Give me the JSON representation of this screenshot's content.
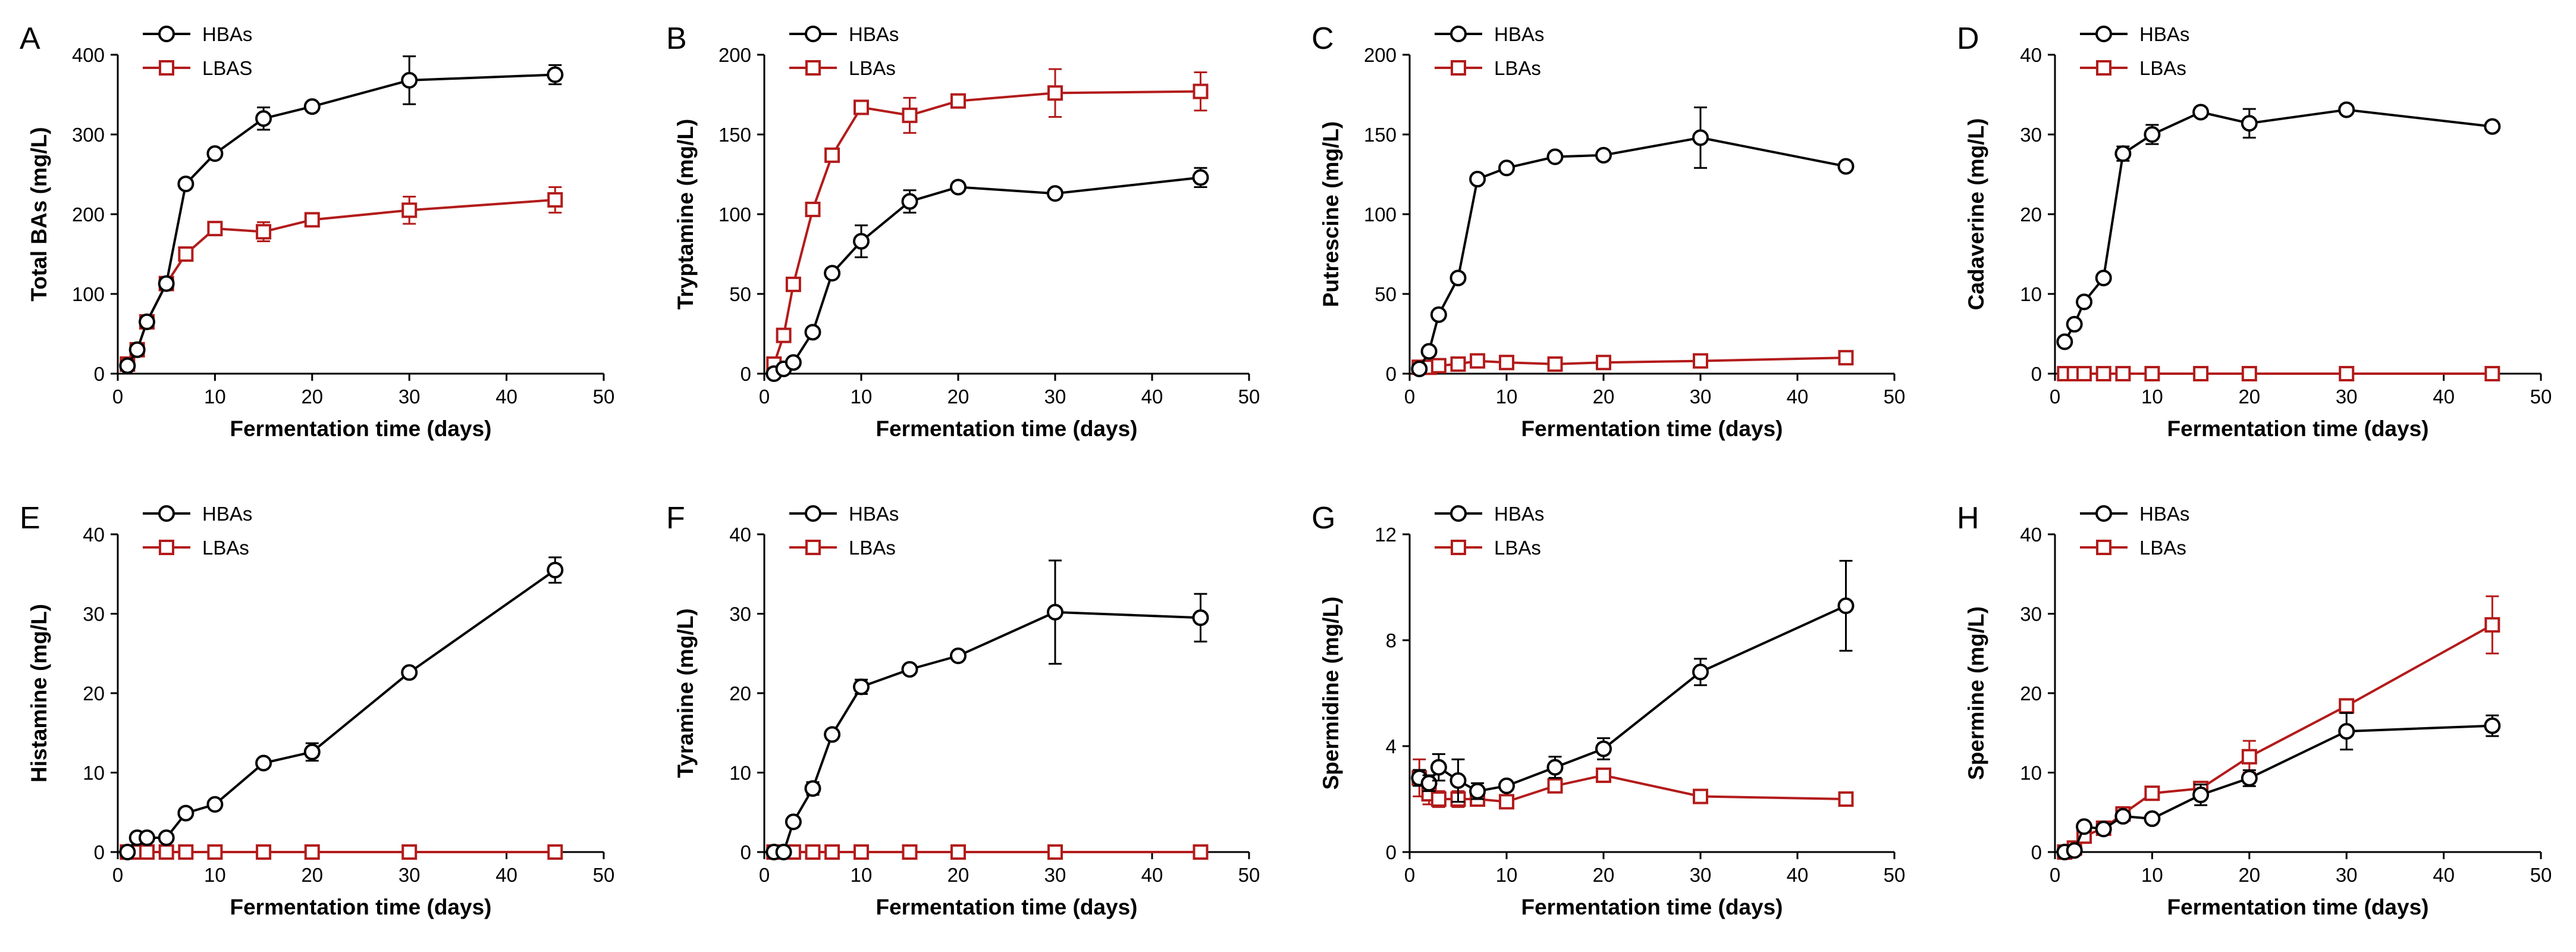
{
  "figure": {
    "colors": {
      "HBAs": "#000000",
      "LBAs": "#b31b1b"
    },
    "xlabel": "Fermentation time (days)",
    "xticks": [
      0,
      10,
      20,
      30,
      40,
      50
    ],
    "x": [
      1,
      2,
      3,
      5,
      7,
      10,
      15,
      20,
      30,
      45
    ]
  },
  "chart_data": [
    {
      "type": "line",
      "panel": "A",
      "ylabel": "Total BAs (mg/L)",
      "ylim": [
        0,
        400
      ],
      "yticks": [
        0,
        100,
        200,
        300,
        400
      ],
      "legend": [
        "HBAs",
        "LBAS"
      ],
      "legend_position": "top-left",
      "series": [
        {
          "name": "HBAs",
          "values": [
            10,
            30,
            65,
            113,
            238,
            276,
            320,
            335,
            368,
            375
          ],
          "errors": [
            4,
            5,
            6,
            7,
            0,
            0,
            14,
            0,
            30,
            12
          ]
        },
        {
          "name": "LBAS",
          "values": [
            12,
            30,
            65,
            113,
            150,
            182,
            178,
            193,
            205,
            218
          ],
          "errors": [
            3,
            5,
            6,
            7,
            0,
            0,
            12,
            0,
            17,
            16
          ]
        }
      ]
    },
    {
      "type": "line",
      "panel": "B",
      "ylabel": "Tryptamine (mg/L)",
      "ylim": [
        0,
        200
      ],
      "yticks": [
        0,
        50,
        100,
        150,
        200
      ],
      "legend": [
        "HBAs",
        "LBAs"
      ],
      "legend_position": "top-left",
      "series": [
        {
          "name": "HBAs",
          "values": [
            0,
            3,
            7,
            26,
            63,
            83,
            108,
            117,
            113,
            123
          ],
          "errors": [
            0,
            0,
            0,
            0,
            0,
            10,
            7,
            0,
            0,
            6
          ]
        },
        {
          "name": "LBAs",
          "values": [
            6,
            24,
            56,
            103,
            137,
            167,
            162,
            171,
            176,
            177
          ],
          "errors": [
            0,
            0,
            0,
            0,
            0,
            0,
            11,
            0,
            15,
            12
          ]
        }
      ]
    },
    {
      "type": "line",
      "panel": "C",
      "ylabel": "Putrescine (mg/L)",
      "ylim": [
        0,
        200
      ],
      "yticks": [
        0,
        50,
        100,
        150,
        200
      ],
      "legend": [
        "HBAs",
        "LBAs"
      ],
      "legend_position": "top-left",
      "series": [
        {
          "name": "HBAs",
          "values": [
            3,
            14,
            37,
            60,
            122,
            129,
            136,
            137,
            148,
            130
          ],
          "errors": [
            0,
            0,
            0,
            0,
            0,
            0,
            0,
            0,
            19,
            0
          ]
        },
        {
          "name": "LBAs",
          "values": [
            4,
            4,
            5,
            6,
            8,
            7,
            6,
            7,
            8,
            10
          ],
          "errors": [
            0,
            0,
            0,
            0,
            0,
            0,
            0,
            0,
            0,
            0
          ]
        }
      ]
    },
    {
      "type": "line",
      "panel": "D",
      "ylabel": "Cadaverine (mg/L)",
      "ylim": [
        0,
        40
      ],
      "yticks": [
        0,
        10,
        20,
        30,
        40
      ],
      "legend": [
        "HBAs",
        "LBAs"
      ],
      "legend_position": "top-left",
      "series": [
        {
          "name": "HBAs",
          "values": [
            4,
            6.2,
            9,
            12,
            27.6,
            30,
            32.8,
            31.4,
            33.1,
            31
          ],
          "errors": [
            0,
            0,
            0,
            0,
            0.9,
            1.2,
            0.6,
            1.8,
            0,
            0
          ]
        },
        {
          "name": "LBAs",
          "values": [
            0,
            0,
            0,
            0,
            0,
            0,
            0,
            0,
            0,
            0
          ],
          "errors": [
            0,
            0,
            0,
            0,
            0,
            0,
            0,
            0,
            0,
            0
          ]
        }
      ]
    },
    {
      "type": "line",
      "panel": "E",
      "ylabel": "Histamine (mg/L)",
      "ylim": [
        0,
        40
      ],
      "yticks": [
        0,
        10,
        20,
        30,
        40
      ],
      "legend": [
        "HBAs",
        "LBAs"
      ],
      "legend_position": "top-left",
      "series": [
        {
          "name": "HBAs",
          "values": [
            0,
            1.8,
            1.8,
            1.8,
            4.9,
            6,
            11.2,
            12.6,
            22.6,
            35.5
          ],
          "errors": [
            0,
            0,
            0,
            0,
            0,
            0,
            0,
            1.1,
            0,
            1.6
          ]
        },
        {
          "name": "LBAs",
          "values": [
            0,
            0,
            0,
            0,
            0,
            0,
            0,
            0,
            0,
            0
          ],
          "errors": [
            0,
            0,
            0,
            0,
            0,
            0,
            0,
            0,
            0,
            0
          ]
        }
      ]
    },
    {
      "type": "line",
      "panel": "F",
      "ylabel": "Tyramine (mg/L)",
      "ylim": [
        0,
        40
      ],
      "yticks": [
        0,
        10,
        20,
        30,
        40
      ],
      "legend": [
        "HBAs",
        "LBAs"
      ],
      "legend_position": "top-left",
      "series": [
        {
          "name": "HBAs",
          "values": [
            0,
            0,
            3.8,
            8,
            14.8,
            20.8,
            23,
            24.7,
            30.2,
            29.5
          ],
          "errors": [
            0,
            0,
            0,
            0.8,
            0,
            0.9,
            0,
            0,
            6.5,
            3
          ]
        },
        {
          "name": "LBAs",
          "values": [
            0,
            0,
            0,
            0,
            0,
            0,
            0,
            0,
            0,
            0
          ],
          "errors": [
            0,
            0,
            0,
            0,
            0,
            0,
            0,
            0,
            0,
            0
          ]
        }
      ]
    },
    {
      "type": "line",
      "panel": "G",
      "ylabel": "Spermidine (mg/L)",
      "ylim": [
        0,
        12
      ],
      "yticks": [
        0,
        4,
        8,
        12
      ],
      "legend": [
        "HBAs",
        "LBAs"
      ],
      "legend_position": "top-left",
      "series": [
        {
          "name": "HBAs",
          "values": [
            2.8,
            2.6,
            3.2,
            2.7,
            2.3,
            2.5,
            3.2,
            3.9,
            6.8,
            9.3
          ],
          "errors": [
            0.3,
            0.3,
            0.5,
            0.8,
            0.3,
            0,
            0.4,
            0.4,
            0.5,
            1.7
          ]
        },
        {
          "name": "LBAs",
          "values": [
            2.8,
            2.2,
            2,
            2,
            2,
            1.9,
            2.5,
            2.9,
            2.1,
            2
          ],
          "errors": [
            0.7,
            0.4,
            0.3,
            0.3,
            0,
            0,
            0,
            0,
            0,
            0
          ]
        }
      ]
    },
    {
      "type": "line",
      "panel": "H",
      "ylabel": "Spermine (mg/L)",
      "ylim": [
        0,
        40
      ],
      "yticks": [
        0,
        10,
        20,
        30,
        40
      ],
      "legend": [
        "HBAs",
        "LBAs"
      ],
      "legend_position": "top-left",
      "series": [
        {
          "name": "HBAs",
          "values": [
            0,
            0.2,
            3.2,
            2.9,
            4.5,
            4.2,
            7.2,
            9.3,
            15.2,
            15.9
          ],
          "errors": [
            0,
            0,
            0,
            0,
            0,
            0,
            1.3,
            1,
            2.3,
            1.3
          ]
        },
        {
          "name": "LBAs",
          "values": [
            0,
            0.5,
            2,
            3,
            4.8,
            7.4,
            8,
            12,
            18.4,
            28.6
          ],
          "errors": [
            0,
            0,
            0,
            0,
            0,
            0,
            0,
            2,
            0,
            3.6
          ]
        }
      ]
    }
  ]
}
